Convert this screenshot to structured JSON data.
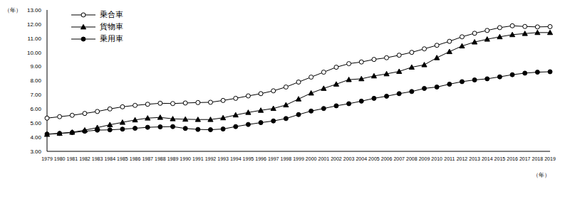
{
  "chart_data": {
    "type": "line",
    "x_label": "（年）",
    "y_label": "（年）",
    "legend": "upper left",
    "grid": false,
    "categories": [
      "1979",
      "1980",
      "1981",
      "1982",
      "1983",
      "1984",
      "1985",
      "1986",
      "1987",
      "1988",
      "1989",
      "1990",
      "1991",
      "1992",
      "1993",
      "1994",
      "1995",
      "1996",
      "1997",
      "1998",
      "1999",
      "2000",
      "2001",
      "2002",
      "2003",
      "2004",
      "2005",
      "2006",
      "2007",
      "2008",
      "2009",
      "2010",
      "2011",
      "2012",
      "2013",
      "2014",
      "2015",
      "2016",
      "2017",
      "2018",
      "2019"
    ],
    "ylim": [
      3,
      13
    ],
    "yticks": [
      {
        "value": 3,
        "label": "3.00"
      },
      {
        "value": 4,
        "label": "4.00"
      },
      {
        "value": 5,
        "label": "5.00"
      },
      {
        "value": 6,
        "label": "6.00"
      },
      {
        "value": 7,
        "label": "7.00"
      },
      {
        "value": 8,
        "label": "8.00"
      },
      {
        "value": 9,
        "label": "9.00"
      },
      {
        "value": 10,
        "label": "10.00"
      },
      {
        "value": 11,
        "label": "11.00"
      },
      {
        "value": 12,
        "label": "12.00"
      },
      {
        "value": 13,
        "label": "13.00"
      }
    ],
    "series": [
      {
        "name": "乗合車",
        "color": "#000000",
        "marker": "circle_open",
        "values": [
          5.35,
          5.45,
          5.55,
          5.68,
          5.82,
          6.0,
          6.15,
          6.25,
          6.33,
          6.4,
          6.38,
          6.42,
          6.45,
          6.47,
          6.6,
          6.75,
          6.92,
          7.08,
          7.28,
          7.55,
          7.9,
          8.25,
          8.6,
          8.95,
          9.2,
          9.32,
          9.5,
          9.62,
          9.8,
          10.0,
          10.25,
          10.5,
          10.78,
          11.1,
          11.35,
          11.55,
          11.75,
          11.88,
          11.83,
          11.8,
          11.82
        ]
      },
      {
        "name": "貨物車",
        "color": "#000000",
        "marker": "triangle",
        "values": [
          4.2,
          4.27,
          4.35,
          4.5,
          4.68,
          4.88,
          5.05,
          5.22,
          5.35,
          5.4,
          5.3,
          5.27,
          5.25,
          5.25,
          5.37,
          5.57,
          5.75,
          5.9,
          6.03,
          6.28,
          6.7,
          7.12,
          7.45,
          7.75,
          8.07,
          8.13,
          8.33,
          8.48,
          8.65,
          8.95,
          9.12,
          9.62,
          10.05,
          10.45,
          10.73,
          10.93,
          11.1,
          11.25,
          11.33,
          11.4,
          11.4
        ]
      },
      {
        "name": "乗用車",
        "color": "#000000",
        "marker": "circle",
        "values": [
          4.22,
          4.27,
          4.33,
          4.42,
          4.5,
          4.52,
          4.57,
          4.63,
          4.7,
          4.73,
          4.75,
          4.62,
          4.55,
          4.53,
          4.58,
          4.75,
          4.9,
          5.03,
          5.15,
          5.32,
          5.6,
          5.85,
          6.03,
          6.22,
          6.37,
          6.55,
          6.75,
          6.9,
          7.08,
          7.23,
          7.45,
          7.55,
          7.75,
          7.93,
          8.05,
          8.13,
          8.27,
          8.42,
          8.53,
          8.6,
          8.63
        ]
      }
    ]
  }
}
